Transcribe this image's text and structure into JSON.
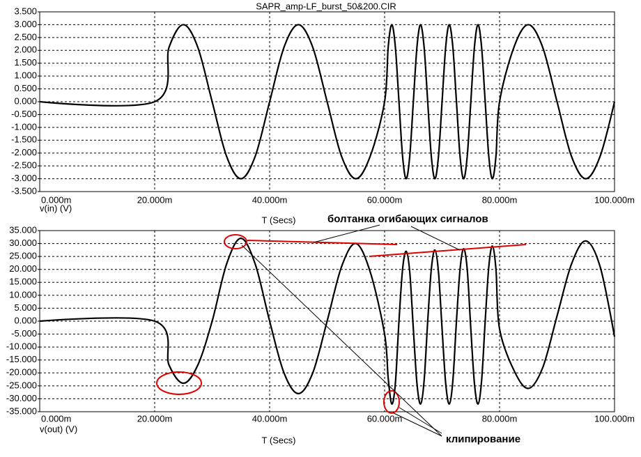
{
  "chart_data": [
    {
      "type": "line",
      "title": "SAPR_amp-LF_burst_50&200.CIR",
      "xlabel": "T (Secs)",
      "ylabel": "v(in) (V)",
      "color": "#000000",
      "grid": true,
      "x": [
        0,
        0.02,
        0.0225,
        0.025,
        0.0275,
        0.03,
        0.0325,
        0.035,
        0.0375,
        0.04,
        0.0425,
        0.045,
        0.0475,
        0.05,
        0.0525,
        0.055,
        0.0575,
        0.06,
        0.060625,
        0.06125,
        0.061875,
        0.0625,
        0.063125,
        0.06375,
        0.064375,
        0.065,
        0.065625,
        0.06625,
        0.066875,
        0.0675,
        0.068125,
        0.06875,
        0.069375,
        0.07,
        0.070625,
        0.07125,
        0.071875,
        0.0725,
        0.073125,
        0.07375,
        0.074375,
        0.075,
        0.075625,
        0.07625,
        0.076875,
        0.0775,
        0.078125,
        0.07875,
        0.079375,
        0.08,
        0.0825,
        0.085,
        0.0875,
        0.09,
        0.0925,
        0.095,
        0.0975,
        0.1
      ],
      "values": [
        0,
        0,
        2.121,
        3,
        2.121,
        0,
        -2.121,
        -3,
        -2.121,
        0,
        2.121,
        3,
        2.121,
        0,
        -2.121,
        -3,
        -2.121,
        0,
        2.121,
        3,
        2.121,
        0,
        -2.121,
        -3,
        -2.121,
        0,
        2.121,
        3,
        2.121,
        0,
        -2.121,
        -3,
        -2.121,
        0,
        2.121,
        3,
        2.121,
        0,
        -2.121,
        -3,
        -2.121,
        0,
        2.121,
        3,
        2.121,
        0,
        -2.121,
        -3,
        -2.121,
        0,
        2.121,
        3,
        2.121,
        0,
        -2.121,
        -3,
        -2.121,
        0
      ],
      "xlim": [
        0,
        0.1
      ],
      "xticks": [
        {
          "value": 0,
          "label": "0.000m"
        },
        {
          "value": 0.02,
          "label": "20.000m"
        },
        {
          "value": 0.04,
          "label": "40.000m"
        },
        {
          "value": 0.06,
          "label": "60.000m"
        },
        {
          "value": 0.08,
          "label": "80.000m"
        },
        {
          "value": 0.1,
          "label": "100.000m"
        }
      ],
      "ylim": [
        -3.5,
        3.5
      ],
      "yticks": [
        {
          "value": 3.5,
          "label": "3.500"
        },
        {
          "value": 3,
          "label": "3.000"
        },
        {
          "value": 2.5,
          "label": "2.500"
        },
        {
          "value": 2,
          "label": "2.000"
        },
        {
          "value": 1.5,
          "label": "1.500"
        },
        {
          "value": 1,
          "label": "1.000"
        },
        {
          "value": 0.5,
          "label": "0.500"
        },
        {
          "value": 0,
          "label": "0.000"
        },
        {
          "value": -0.5,
          "label": "-0.500"
        },
        {
          "value": -1,
          "label": "-1.000"
        },
        {
          "value": -1.5,
          "label": "-1.500"
        },
        {
          "value": -2,
          "label": "-2.000"
        },
        {
          "value": -2.5,
          "label": "-2.500"
        },
        {
          "value": -3,
          "label": "-3.000"
        },
        {
          "value": -3.5,
          "label": "-3.500"
        }
      ]
    },
    {
      "type": "line",
      "xlabel": "T (Secs)",
      "ylabel": "v(out) (V)",
      "color": "#000000",
      "grid": true,
      "annotations": [
        "болтанка огибающих сигналов",
        "клипирование"
      ],
      "x": [
        0,
        0.02,
        0.0225,
        0.025,
        0.0275,
        0.03,
        0.0325,
        0.035,
        0.0375,
        0.04,
        0.0425,
        0.045,
        0.0475,
        0.05,
        0.0525,
        0.055,
        0.0575,
        0.06,
        0.060625,
        0.06125,
        0.061875,
        0.0625,
        0.063125,
        0.06375,
        0.064375,
        0.065,
        0.065625,
        0.06625,
        0.066875,
        0.0675,
        0.068125,
        0.06875,
        0.069375,
        0.07,
        0.070625,
        0.07125,
        0.071875,
        0.0725,
        0.073125,
        0.07375,
        0.074375,
        0.075,
        0.075625,
        0.07625,
        0.076875,
        0.0775,
        0.078125,
        0.07875,
        0.079375,
        0.08,
        0.0825,
        0.085,
        0.0875,
        0.09,
        0.0925,
        0.095,
        0.0975,
        0.1
      ],
      "values": [
        0,
        0,
        -17,
        -24,
        -17,
        0,
        22,
        32,
        22,
        0,
        -20,
        -28,
        -20,
        0,
        21,
        30,
        19,
        -5,
        -22,
        -32,
        -24,
        0,
        20,
        27,
        19,
        -3,
        -24,
        -32,
        -23,
        0,
        20,
        27.5,
        19,
        -3,
        -24,
        -32,
        -23,
        0,
        20,
        28,
        20,
        -3,
        -24,
        -32,
        -23,
        0,
        21,
        29,
        20,
        -3,
        -19,
        -26,
        -18,
        2,
        22,
        31,
        21,
        -6
      ],
      "xlim": [
        0,
        0.1
      ],
      "xticks": [
        {
          "value": 0,
          "label": "0.000m"
        },
        {
          "value": 0.02,
          "label": "20.000m"
        },
        {
          "value": 0.04,
          "label": "40.000m"
        },
        {
          "value": 0.06,
          "label": "60.000m"
        },
        {
          "value": 0.08,
          "label": "80.000m"
        },
        {
          "value": 0.1,
          "label": "100.000m"
        }
      ],
      "ylim": [
        -35,
        35
      ],
      "yticks": [
        {
          "value": 35,
          "label": "35.000"
        },
        {
          "value": 30,
          "label": "30.000"
        },
        {
          "value": 25,
          "label": "25.000"
        },
        {
          "value": 20,
          "label": "20.000"
        },
        {
          "value": 15,
          "label": "15.000"
        },
        {
          "value": 10,
          "label": "10.000"
        },
        {
          "value": 5,
          "label": "5.000"
        },
        {
          "value": 0,
          "label": "0.000"
        },
        {
          "value": -5,
          "label": "-5.000"
        },
        {
          "value": -10,
          "label": "-10.000"
        },
        {
          "value": -15,
          "label": "-15.000"
        },
        {
          "value": -20,
          "label": "-20.000"
        },
        {
          "value": -25,
          "label": "-25.000"
        },
        {
          "value": -30,
          "label": "-30.000"
        },
        {
          "value": -35,
          "label": "-35.000"
        }
      ]
    }
  ]
}
